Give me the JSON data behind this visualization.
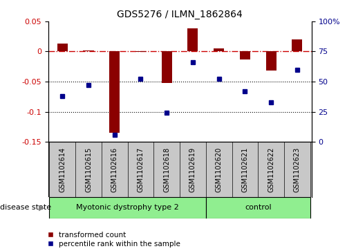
{
  "title": "GDS5276 / ILMN_1862864",
  "samples": [
    "GSM1102614",
    "GSM1102615",
    "GSM1102616",
    "GSM1102617",
    "GSM1102618",
    "GSM1102619",
    "GSM1102620",
    "GSM1102621",
    "GSM1102622",
    "GSM1102623"
  ],
  "red_values": [
    0.013,
    0.002,
    -0.135,
    -0.001,
    -0.052,
    0.038,
    0.005,
    -0.013,
    -0.032,
    0.02
  ],
  "blue_values": [
    38,
    47,
    6,
    52,
    24,
    66,
    52,
    42,
    33,
    60
  ],
  "red_ylim": [
    -0.15,
    0.05
  ],
  "blue_ylim": [
    0,
    100
  ],
  "red_ticks": [
    0.05,
    0,
    -0.05,
    -0.1,
    -0.15
  ],
  "blue_ticks": [
    100,
    75,
    50,
    25,
    0
  ],
  "disease_groups": [
    {
      "label": "Myotonic dystrophy type 2",
      "start": 0,
      "end": 5,
      "color": "#90EE90"
    },
    {
      "label": "control",
      "start": 6,
      "end": 9,
      "color": "#90EE90"
    }
  ],
  "red_color": "#8B0000",
  "blue_color": "#00008B",
  "dashdot_color": "#CC0000",
  "dotted_color": "#000000",
  "bg_plot": "#FFFFFF",
  "bg_label": "#C8C8C8",
  "legend_red_label": "transformed count",
  "legend_blue_label": "percentile rank within the sample",
  "disease_state_label": "disease state",
  "title_fontsize": 10,
  "tick_fontsize": 8,
  "label_fontsize": 7,
  "disease_fontsize": 8
}
